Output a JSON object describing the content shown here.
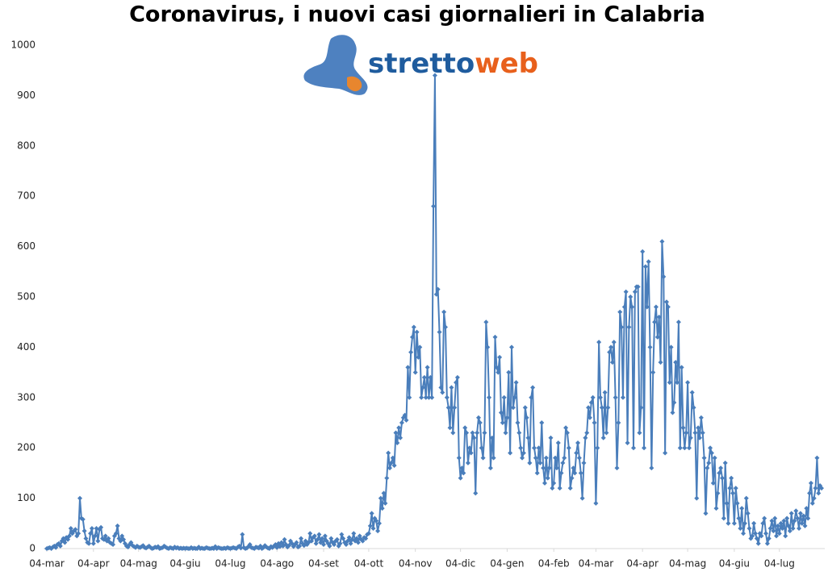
{
  "chart_data": {
    "type": "line",
    "title": "Coronavirus, i nuovi casi giornalieri in Calabria",
    "logo": {
      "first": "stretto",
      "second": "web"
    },
    "color": "#4a7ebb",
    "ylim": [
      0,
      1000
    ],
    "yticks": [
      0,
      100,
      200,
      300,
      400,
      500,
      600,
      700,
      800,
      900,
      1000
    ],
    "categories": [
      "04-mar",
      null,
      null,
      null,
      null,
      null,
      null,
      null,
      null,
      null,
      null,
      null,
      null,
      null,
      null,
      null,
      null,
      null,
      null,
      null,
      null,
      null,
      null,
      null,
      null,
      null,
      null,
      null,
      null,
      null,
      null,
      "04-apr",
      null,
      null,
      null,
      null,
      null,
      null,
      null,
      null,
      null,
      null,
      null,
      null,
      null,
      null,
      null,
      null,
      null,
      null,
      null,
      null,
      null,
      null,
      null,
      null,
      null,
      null,
      null,
      null,
      null,
      "04-mag",
      null,
      null,
      null,
      null,
      null,
      null,
      null,
      null,
      null,
      null,
      null,
      null,
      null,
      null,
      null,
      null,
      null,
      null,
      null,
      null,
      null,
      null,
      null,
      null,
      null,
      null,
      null,
      null,
      null,
      null,
      "04-giu",
      null,
      null,
      null,
      null,
      null,
      null,
      null,
      null,
      null,
      null,
      null,
      null,
      null,
      null,
      null,
      null,
      null,
      null,
      null,
      null,
      null,
      null,
      null,
      null,
      null,
      null,
      null,
      null,
      null,
      "04-lug",
      null,
      null,
      null,
      null,
      null,
      null,
      null,
      null,
      null,
      null,
      null,
      null,
      null,
      null,
      null,
      null,
      null,
      null,
      null,
      null,
      null,
      null,
      null,
      null,
      null,
      null,
      null,
      null,
      null,
      null,
      "04-ago",
      null,
      null,
      null,
      null,
      null,
      null,
      null,
      null,
      null,
      null,
      null,
      null,
      null,
      null,
      null,
      null,
      null,
      null,
      null,
      null,
      null,
      null,
      null,
      null,
      null,
      null,
      null,
      null,
      null,
      null,
      "04-set",
      null,
      null,
      null,
      null,
      null,
      null,
      null,
      null,
      null,
      null,
      null,
      null,
      null,
      null,
      null,
      null,
      null,
      null,
      null,
      null,
      null,
      null,
      null,
      null,
      null,
      null,
      null,
      null,
      null,
      "04-ott",
      null,
      null,
      null,
      null,
      null,
      null,
      null,
      null,
      null,
      null,
      null,
      null,
      null,
      null,
      null,
      null,
      null,
      null,
      null,
      null,
      null,
      null,
      null,
      null,
      null,
      null,
      null,
      null,
      null,
      null,
      "04-nov",
      null,
      null,
      null,
      null,
      null,
      null,
      null,
      null,
      null,
      null,
      null,
      null,
      null,
      null,
      null,
      null,
      null,
      null,
      null,
      null,
      null,
      null,
      null,
      null,
      null,
      null,
      null,
      null,
      null,
      "04-dic",
      null,
      null,
      null,
      null,
      null,
      null,
      null,
      null,
      null,
      null,
      null,
      null,
      null,
      null,
      null,
      null,
      null,
      null,
      null,
      null,
      null,
      null,
      null,
      null,
      null,
      null,
      null,
      null,
      null,
      null,
      "04-gen",
      null,
      null,
      null,
      null,
      null,
      null,
      null,
      null,
      null,
      null,
      null,
      null,
      null,
      null,
      null,
      null,
      null,
      null,
      null,
      null,
      null,
      null,
      null,
      null,
      null,
      null,
      null,
      null,
      null,
      null,
      "04-feb",
      null,
      null,
      null,
      null,
      null,
      null,
      null,
      null,
      null,
      null,
      null,
      null,
      null,
      null,
      null,
      null,
      null,
      null,
      null,
      null,
      null,
      null,
      null,
      null,
      null,
      null,
      null,
      "04-mar",
      null,
      null,
      null,
      null,
      null,
      null,
      null,
      null,
      null,
      null,
      null,
      null,
      null,
      null,
      null,
      null,
      null,
      null,
      null,
      null,
      null,
      null,
      null,
      null,
      null,
      null,
      null,
      null,
      null,
      null,
      "04-apr",
      null,
      null,
      null,
      null,
      null,
      null,
      null,
      null,
      null,
      null,
      null,
      null,
      null,
      null,
      null,
      null,
      null,
      null,
      null,
      null,
      null,
      null,
      null,
      null,
      null,
      null,
      null,
      null,
      null,
      "04-mag",
      null,
      null,
      null,
      null,
      null,
      null,
      null,
      null,
      null,
      null,
      null,
      null,
      null,
      null,
      null,
      null,
      null,
      null,
      null,
      null,
      null,
      null,
      null,
      null,
      null,
      null,
      null,
      null,
      null,
      null,
      "04-giu",
      null,
      null,
      null,
      null,
      null,
      null,
      null,
      null,
      null,
      null,
      null,
      null,
      null,
      null,
      null,
      null,
      null,
      null,
      null,
      null,
      null,
      null,
      null,
      null,
      null,
      null,
      null,
      null,
      null,
      "04-lug",
      null,
      null,
      null,
      null,
      null,
      null,
      null,
      null,
      null,
      null,
      null,
      null,
      null,
      null,
      null,
      null,
      null,
      null,
      null,
      null,
      null,
      null,
      null,
      null,
      null,
      null,
      null,
      null
    ],
    "values": [
      0,
      1,
      2,
      0,
      3,
      5,
      2,
      8,
      10,
      5,
      15,
      20,
      12,
      22,
      18,
      25,
      40,
      30,
      35,
      38,
      25,
      30,
      100,
      60,
      58,
      35,
      20,
      12,
      10,
      30,
      40,
      10,
      25,
      40,
      15,
      38,
      42,
      20,
      18,
      25,
      15,
      20,
      12,
      10,
      8,
      25,
      30,
      45,
      20,
      15,
      25,
      18,
      10,
      5,
      3,
      8,
      12,
      6,
      4,
      2,
      5,
      3,
      2,
      4,
      6,
      2,
      1,
      3,
      5,
      2,
      0,
      1,
      3,
      2,
      4,
      0,
      1,
      2,
      5,
      3,
      1,
      0,
      2,
      1,
      0,
      3,
      1,
      2,
      0,
      1,
      0,
      1,
      0,
      1,
      0,
      0,
      2,
      0,
      1,
      0,
      0,
      3,
      0,
      1,
      0,
      0,
      2,
      1,
      0,
      0,
      1,
      0,
      4,
      0,
      2,
      1,
      0,
      0,
      1,
      0,
      2,
      1,
      0,
      1,
      2,
      1,
      0,
      3,
      5,
      1,
      28,
      2,
      0,
      1,
      4,
      8,
      2,
      1,
      0,
      3,
      2,
      1,
      5,
      0,
      2,
      6,
      3,
      1,
      0,
      4,
      2,
      5,
      8,
      2,
      10,
      4,
      12,
      5,
      18,
      8,
      3,
      6,
      15,
      10,
      4,
      8,
      12,
      3,
      5,
      20,
      10,
      6,
      15,
      8,
      12,
      30,
      15,
      22,
      25,
      10,
      18,
      28,
      12,
      20,
      8,
      25,
      15,
      10,
      5,
      20,
      12,
      8,
      15,
      18,
      5,
      10,
      28,
      20,
      12,
      8,
      15,
      22,
      10,
      18,
      30,
      15,
      20,
      12,
      25,
      18,
      15,
      22,
      20,
      28,
      30,
      45,
      70,
      40,
      60,
      55,
      35,
      50,
      100,
      80,
      110,
      90,
      140,
      190,
      160,
      170,
      180,
      165,
      230,
      210,
      240,
      220,
      250,
      260,
      265,
      255,
      360,
      300,
      390,
      420,
      440,
      350,
      430,
      380,
      400,
      300,
      320,
      340,
      300,
      360,
      300,
      340,
      300,
      680,
      940,
      505,
      515,
      430,
      320,
      310,
      470,
      440,
      300,
      280,
      240,
      320,
      230,
      280,
      330,
      340,
      180,
      140,
      160,
      150,
      240,
      230,
      170,
      200,
      190,
      230,
      220,
      110,
      230,
      260,
      250,
      200,
      180,
      230,
      450,
      400,
      300,
      160,
      220,
      180,
      420,
      360,
      350,
      380,
      270,
      250,
      300,
      230,
      260,
      350,
      190,
      400,
      280,
      300,
      330,
      250,
      230,
      200,
      180,
      190,
      280,
      260,
      220,
      170,
      300,
      320,
      200,
      180,
      150,
      200,
      170,
      250,
      160,
      130,
      180,
      140,
      160,
      220,
      120,
      130,
      180,
      160,
      210,
      120,
      150,
      170,
      180,
      240,
      230,
      200,
      120,
      140,
      160,
      150,
      190,
      210,
      180,
      150,
      100,
      170,
      220,
      230,
      280,
      260,
      290,
      300,
      250,
      90,
      200,
      410,
      300,
      280,
      220,
      310,
      230,
      280,
      390,
      400,
      370,
      410,
      300,
      160,
      250,
      470,
      440,
      300,
      480,
      510,
      210,
      440,
      500,
      480,
      200,
      510,
      520,
      520,
      230,
      280,
      590,
      200,
      560,
      480,
      570,
      400,
      160,
      350,
      450,
      480,
      420,
      460,
      370,
      610,
      540,
      190,
      490,
      480,
      330,
      400,
      270,
      290,
      370,
      330,
      450,
      200,
      360,
      240,
      200,
      230,
      330,
      200,
      220,
      310,
      280,
      230,
      100,
      240,
      220,
      260,
      230,
      180,
      70,
      160,
      170,
      200,
      190,
      130,
      180,
      80,
      110,
      150,
      160,
      140,
      60,
      170,
      90,
      50,
      120,
      140,
      110,
      50,
      120,
      90,
      60,
      40,
      80,
      30,
      50,
      100,
      70,
      40,
      20,
      25,
      50,
      30,
      20,
      10,
      30,
      25,
      50,
      60,
      30,
      10,
      20,
      40,
      55,
      35,
      60,
      25,
      45,
      30,
      50,
      40,
      55,
      25,
      60,
      45,
      35,
      70,
      40,
      55,
      75,
      60,
      40,
      70,
      50,
      65,
      45,
      80,
      60,
      110,
      130,
      90,
      100,
      120,
      180,
      110,
      125,
      120
    ]
  }
}
